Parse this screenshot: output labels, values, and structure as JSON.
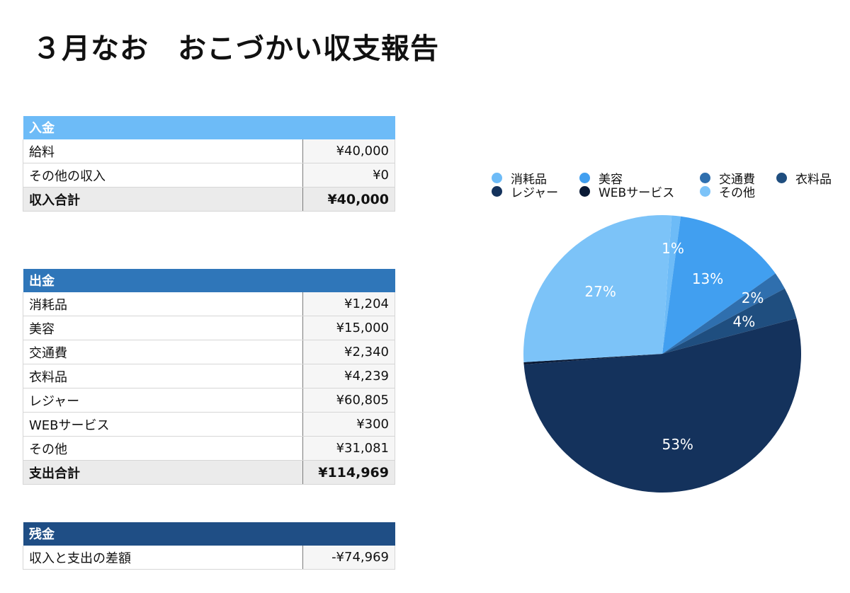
{
  "title": "３月なお　おこづかい収支報告",
  "income": {
    "header": "入金",
    "rows": [
      {
        "label": "給料",
        "value": "¥40,000"
      },
      {
        "label": "その他の収入",
        "value": "¥0"
      }
    ],
    "total": {
      "label": "収入合計",
      "value": "¥40,000"
    }
  },
  "expense": {
    "header": "出金",
    "rows": [
      {
        "label": "消耗品",
        "value": "¥1,204"
      },
      {
        "label": "美容",
        "value": "¥15,000"
      },
      {
        "label": "交通費",
        "value": "¥2,340"
      },
      {
        "label": "衣料品",
        "value": "¥4,239"
      },
      {
        "label": "レジャー",
        "value": "¥60,805"
      },
      {
        "label": "WEBサービス",
        "value": "¥300"
      },
      {
        "label": "その他",
        "value": "¥31,081"
      }
    ],
    "total": {
      "label": "支出合計",
      "value": "¥114,969"
    }
  },
  "balance": {
    "header": "残金",
    "row": {
      "label": "収入と支出の差額",
      "value": "-¥74,969"
    }
  },
  "chart_data": {
    "type": "pie",
    "categories": [
      "消耗品",
      "美容",
      "交通費",
      "衣料品",
      "レジャー",
      "WEBサービス",
      "その他"
    ],
    "values": [
      1204,
      15000,
      2340,
      4239,
      60805,
      300,
      31081
    ],
    "percent_labels": [
      "1%",
      "13%",
      "2%",
      "4%",
      "53%",
      "",
      "27%"
    ],
    "colors": [
      "#6dbbf7",
      "#419ff0",
      "#2f6fae",
      "#1f4e7f",
      "#14325c",
      "#0a1a36",
      "#7cc3f8"
    ],
    "legend_position": "top"
  }
}
